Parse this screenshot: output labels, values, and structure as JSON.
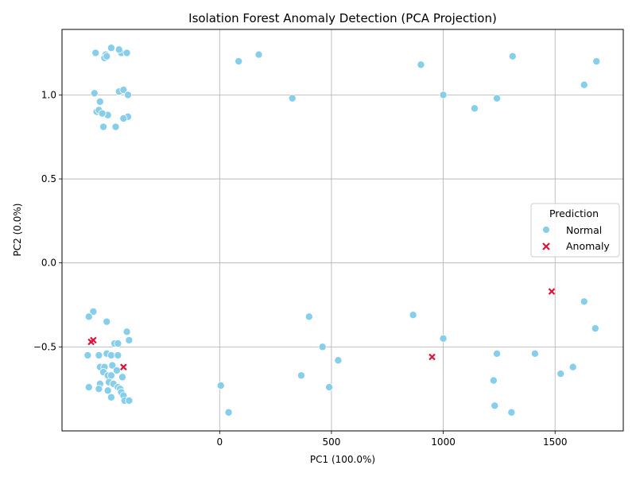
{
  "chart_data": {
    "type": "scatter",
    "title": "Isolation Forest Anomaly Detection (PCA Projection)",
    "xlabel": "PC1 (100.0%)",
    "ylabel": "PC2 (0.0%)",
    "xlim": [
      -705,
      1805
    ],
    "ylim": [
      -1.0,
      1.39
    ],
    "xticks": [
      0,
      500,
      1000,
      1500
    ],
    "yticks": [
      -0.5,
      0.0,
      0.5,
      1.0
    ],
    "xtick_labels": [
      "0",
      "500",
      "1000",
      "1500"
    ],
    "ytick_labels": [
      "−0.5",
      "0.0",
      "0.5",
      "1.0"
    ],
    "grid": true,
    "legend": {
      "title": "Prediction",
      "placement": "center-right"
    },
    "series": [
      {
        "name": "Normal",
        "color": "#87ceeb",
        "marker": "circle",
        "points": [
          [
            -555,
            1.25
          ],
          [
            -510,
            1.24
          ],
          [
            -485,
            1.28
          ],
          [
            -440,
            1.25
          ],
          [
            -450,
            1.27
          ],
          [
            -415,
            1.25
          ],
          [
            -515,
            1.22
          ],
          [
            -505,
            1.23
          ],
          [
            -560,
            1.01
          ],
          [
            -535,
            0.96
          ],
          [
            -450,
            1.02
          ],
          [
            -430,
            1.03
          ],
          [
            -410,
            1.0
          ],
          [
            -550,
            0.9
          ],
          [
            -540,
            0.91
          ],
          [
            -500,
            0.88
          ],
          [
            -525,
            0.89
          ],
          [
            -410,
            0.87
          ],
          [
            -430,
            0.86
          ],
          [
            -520,
            0.81
          ],
          [
            -465,
            0.81
          ],
          [
            85,
            1.2
          ],
          [
            175,
            1.24
          ],
          [
            900,
            1.18
          ],
          [
            1310,
            1.23
          ],
          [
            1685,
            1.2
          ],
          [
            325,
            0.98
          ],
          [
            1000,
            1.0
          ],
          [
            1140,
            0.92
          ],
          [
            1240,
            0.98
          ],
          [
            1630,
            1.06
          ],
          [
            -565,
            -0.29
          ],
          [
            -585,
            -0.32
          ],
          [
            -505,
            -0.35
          ],
          [
            -415,
            -0.41
          ],
          [
            -405,
            -0.46
          ],
          [
            -470,
            -0.48
          ],
          [
            -455,
            -0.48
          ],
          [
            -505,
            -0.54
          ],
          [
            -485,
            -0.55
          ],
          [
            -590,
            -0.55
          ],
          [
            -540,
            -0.55
          ],
          [
            -455,
            -0.55
          ],
          [
            -535,
            -0.62
          ],
          [
            -515,
            -0.62
          ],
          [
            -480,
            -0.61
          ],
          [
            -520,
            -0.65
          ],
          [
            -460,
            -0.64
          ],
          [
            -500,
            -0.67
          ],
          [
            -485,
            -0.67
          ],
          [
            -435,
            -0.68
          ],
          [
            -495,
            -0.71
          ],
          [
            -535,
            -0.72
          ],
          [
            -475,
            -0.72
          ],
          [
            -455,
            -0.74
          ],
          [
            -445,
            -0.75
          ],
          [
            -585,
            -0.74
          ],
          [
            -540,
            -0.75
          ],
          [
            -500,
            -0.76
          ],
          [
            -440,
            -0.77
          ],
          [
            -430,
            -0.79
          ],
          [
            -485,
            -0.8
          ],
          [
            -425,
            -0.82
          ],
          [
            -405,
            -0.82
          ],
          [
            400,
            -0.32
          ],
          [
            865,
            -0.31
          ],
          [
            1630,
            -0.23
          ],
          [
            1680,
            -0.39
          ],
          [
            1000,
            -0.45
          ],
          [
            460,
            -0.5
          ],
          [
            530,
            -0.58
          ],
          [
            1240,
            -0.54
          ],
          [
            1410,
            -0.54
          ],
          [
            365,
            -0.67
          ],
          [
            1580,
            -0.62
          ],
          [
            1525,
            -0.66
          ],
          [
            1225,
            -0.7
          ],
          [
            5,
            -0.73
          ],
          [
            490,
            -0.74
          ],
          [
            40,
            -0.89
          ],
          [
            1230,
            -0.85
          ],
          [
            1305,
            -0.89
          ]
        ]
      },
      {
        "name": "Anomaly",
        "color": "#dc143c",
        "marker": "x",
        "points": [
          [
            -575,
            -0.47
          ],
          [
            -565,
            -0.46
          ],
          [
            -430,
            -0.62
          ],
          [
            950,
            -0.56
          ],
          [
            1485,
            -0.17
          ]
        ]
      }
    ]
  }
}
